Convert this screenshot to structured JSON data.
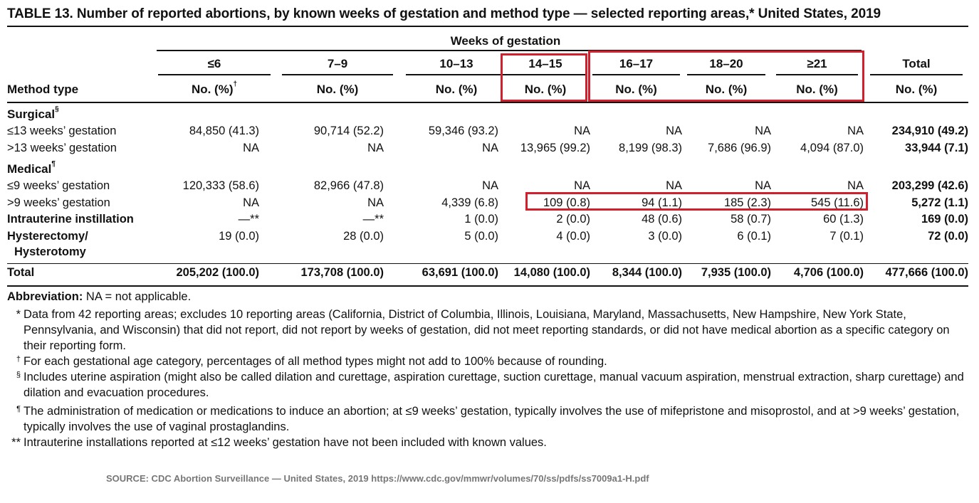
{
  "title": "TABLE 13. Number of reported abortions, by known weeks of gestation and method type — selected reporting areas,* United States, 2019",
  "header": {
    "group_label": "Weeks of gestation",
    "method_label": "Method type",
    "columns": [
      "≤6",
      "7–9",
      "10–13",
      "14–15",
      "16–17",
      "18–20",
      "≥21",
      "Total"
    ],
    "subheads": [
      "No. (%)",
      "No. (%)",
      "No. (%)",
      "No. (%)",
      "No. (%)",
      "No. (%)",
      "No. (%)",
      "No. (%)"
    ],
    "first_subhead_mark": "†"
  },
  "sections": {
    "surgical": {
      "label": "Surgical",
      "mark": "§"
    },
    "medical": {
      "label": "Medical",
      "mark": "¶"
    }
  },
  "rows": [
    {
      "label": "≤13 weeks’ gestation",
      "bold": false,
      "values": [
        "84,850 (41.3)",
        "90,714 (52.2)",
        "59,346 (93.2)",
        "NA",
        "NA",
        "NA",
        "NA",
        "234,910 (49.2)"
      ]
    },
    {
      "label": ">13 weeks’ gestation",
      "bold": false,
      "values": [
        "NA",
        "NA",
        "NA",
        "13,965 (99.2)",
        "8,199 (98.3)",
        "7,686 (96.9)",
        "4,094 (87.0)",
        "33,944 (7.1)"
      ]
    },
    {
      "label": "≤9 weeks’ gestation",
      "bold": false,
      "values": [
        "120,333 (58.6)",
        "82,966 (47.8)",
        "NA",
        "NA",
        "NA",
        "NA",
        "NA",
        "203,299 (42.6)"
      ]
    },
    {
      "label": ">9 weeks’ gestation",
      "bold": false,
      "values": [
        "NA",
        "NA",
        "4,339 (6.8)",
        "109 (0.8)",
        "94 (1.1)",
        "185 (2.3)",
        "545 (11.6)",
        "5,272 (1.1)"
      ]
    },
    {
      "label": "Intrauterine instillation",
      "bold": true,
      "values": [
        "—**",
        "—**",
        "1 (0.0)",
        "2 (0.0)",
        "48 (0.6)",
        "58 (0.7)",
        "60 (1.3)",
        "169 (0.0)"
      ]
    },
    {
      "label": "Hysterectomy/",
      "label2": "Hysterotomy",
      "bold": true,
      "values": [
        "19 (0.0)",
        "28 (0.0)",
        "5 (0.0)",
        "4 (0.0)",
        "3 (0.0)",
        "6 (0.1)",
        "7 (0.1)",
        "72 (0.0)"
      ]
    },
    {
      "label": "Total",
      "bold": true,
      "values": [
        "205,202 (100.0)",
        "173,708 (100.0)",
        "63,691 (100.0)",
        "14,080 (100.0)",
        "8,344 (100.0)",
        "7,935 (100.0)",
        "4,706 (100.0)",
        "477,666 (100.0)"
      ]
    }
  ],
  "footnotes": {
    "abbr_label": "Abbreviation:",
    "abbr_text": " NA = not applicable.",
    "items": [
      {
        "mark": "*",
        "text": "Data from 42 reporting areas; excludes 10 reporting areas (California, District of Columbia, Illinois, Louisiana, Maryland, Massachusetts, New Hampshire, New York State, Pennsylvania, and Wisconsin) that did not report, did not report by weeks of gestation, did not meet reporting standards, or did not have medical abortion as a specific category on their reporting form."
      },
      {
        "mark": "†",
        "text": "For each gestational age category, percentages of all method types might not add to 100% because of rounding."
      },
      {
        "mark": "§",
        "text": "Includes uterine aspiration (might also be called dilation and curettage, aspiration curettage, suction curettage, manual vacuum aspiration, menstrual extraction, sharp curettage) and dilation and evacuation procedures."
      },
      {
        "mark": "¶",
        "text": "The administration of medication or medications to induce an abortion; at ≤9 weeks’ gestation, typically involves the use of mifepristone and misoprostol, and at >9 weeks’ gestation, typically involves the use of vaginal prostaglandins."
      },
      {
        "mark": "**",
        "text": "Intrauterine installations reported at ≤12 weeks’ gestation have not been included with known values."
      }
    ]
  },
  "source": "SOURCE: CDC Abortion Surveillance — United States, 2019 https://www.cdc.gov/mmwr/volumes/70/ss/pdfs/ss7009a1-H.pdf",
  "highlight_color": "#d0202e"
}
